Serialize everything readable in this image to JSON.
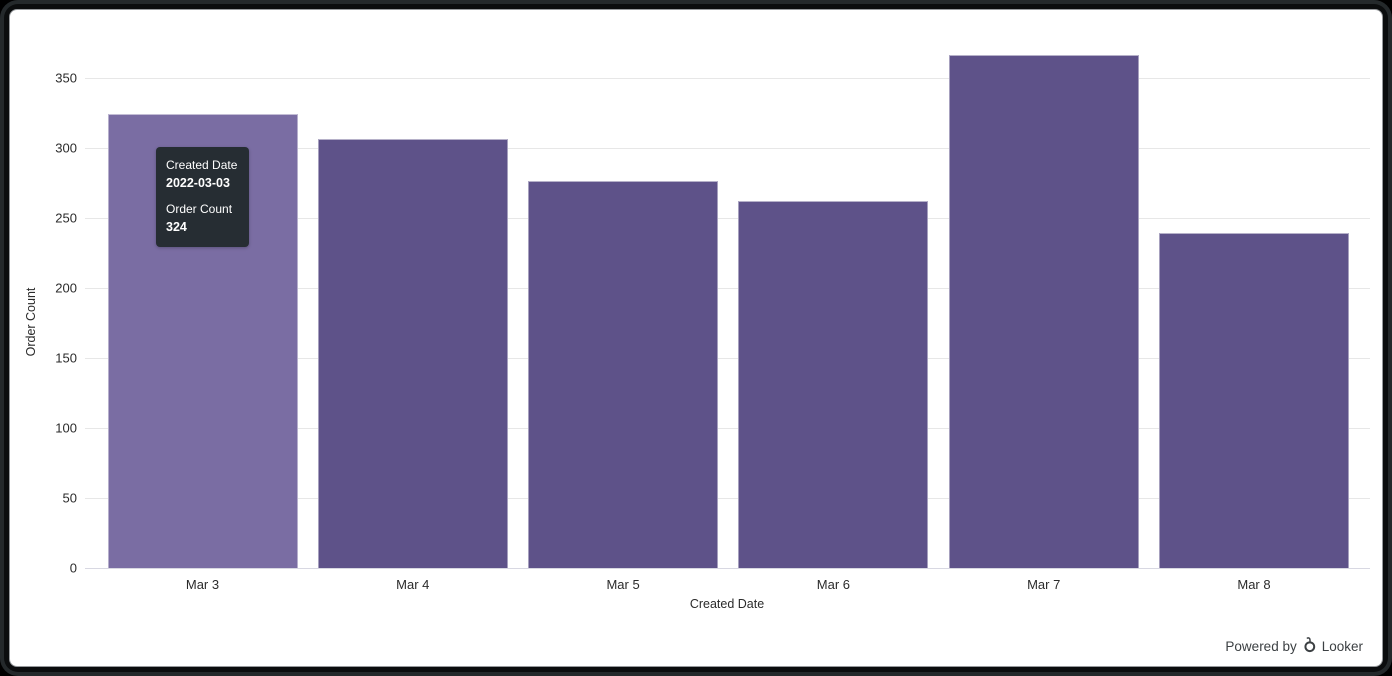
{
  "chart_data": {
    "type": "bar",
    "title": "",
    "categories": [
      "Mar 3",
      "Mar 4",
      "Mar 5",
      "Mar 6",
      "Mar 7",
      "Mar 8"
    ],
    "values": [
      324,
      306,
      276,
      262,
      366,
      239
    ],
    "xlabel": "Created Date",
    "ylabel": "Order Count",
    "ylim": [
      0,
      350
    ],
    "yticks": [
      0,
      50,
      100,
      150,
      200,
      250,
      300,
      350
    ],
    "grid": true,
    "legend": "none",
    "bar_color": "#5e5289",
    "hover_bar_color": "#7a6da3",
    "hovered_index": 0,
    "gridline_color": "#e7e7e7"
  },
  "tooltip": {
    "dimension_label": "Created Date",
    "dimension_value": "2022-03-03",
    "measure_label": "Order Count",
    "measure_value": "324",
    "background_color": "#262d33",
    "text_color": "#ffffff"
  },
  "footer": {
    "powered_by_label": "Powered by",
    "brand_name": "Looker",
    "text_color": "#3c4043"
  }
}
